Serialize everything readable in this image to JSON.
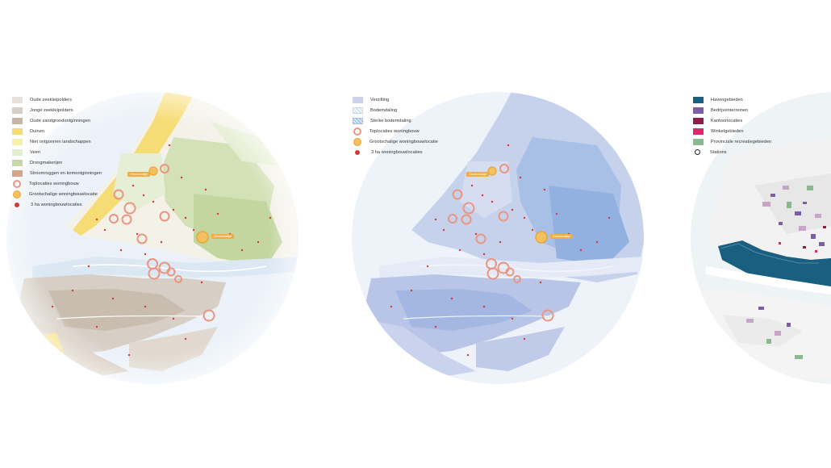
{
  "panels": [
    {
      "id": "landscape",
      "legend": [
        {
          "label": "Oude zeekleipolders",
          "swatch": "fill",
          "color": "#e9e1d9"
        },
        {
          "label": "Jonge zeekleipolders",
          "swatch": "fill",
          "color": "#d7cfc6"
        },
        {
          "label": "Oude zandgrondontginningen",
          "swatch": "fill",
          "color": "#c4b6a7"
        },
        {
          "label": "Duinen",
          "swatch": "fill",
          "color": "#f6dc74"
        },
        {
          "label": "Niet ontgonnen landschappen",
          "swatch": "fill",
          "color": "#f6f2ad"
        },
        {
          "label": "Veen",
          "swatch": "fill",
          "color": "#e3edcf"
        },
        {
          "label": "Droogmakerijen",
          "swatch": "fill",
          "color": "#c6d8a7"
        },
        {
          "label": "Stroomruggen en komontginningen",
          "swatch": "fill",
          "color": "#d7a48c"
        },
        {
          "label": "Toplocaties woningbouw",
          "swatch": "circle-outline"
        },
        {
          "label": "Grootschalige woningbouwlocatie",
          "swatch": "circle-yellow"
        },
        {
          "label": "3 ha woningbouwlocaties",
          "swatch": "dot-red"
        }
      ],
      "site_labels": [
        "Grootschalige",
        "Grootschalige"
      ]
    },
    {
      "id": "soil",
      "legend": [
        {
          "label": "Verzilting",
          "swatch": "fill",
          "color": "#cdd2ec"
        },
        {
          "label": "Bodemdaling",
          "swatch": "hatch-light"
        },
        {
          "label": "Sterke bodemdaling",
          "swatch": "hatch-strong"
        },
        {
          "label": "Toplocaties woningbouw",
          "swatch": "circle-outline"
        },
        {
          "label": "Grootschalige woningbouwlocatie",
          "swatch": "circle-yellow"
        },
        {
          "label": "3 ha woningbouwlocaties",
          "swatch": "dot-red"
        }
      ],
      "site_labels": [
        "Grootschalige",
        "Grootschalige"
      ]
    },
    {
      "id": "economy",
      "legend": [
        {
          "label": "Havengebieden",
          "swatch": "fill",
          "color": "#1a5f7f"
        },
        {
          "label": "Bedrijventerreinen",
          "swatch": "fill",
          "color": "#7b5ea6"
        },
        {
          "label": "Kantoorlocaties",
          "swatch": "fill",
          "color": "#8e1c4e"
        },
        {
          "label": "Winkelgebieden",
          "swatch": "fill",
          "color": "#e0266f"
        },
        {
          "label": "Provinciale recreatiegebieden",
          "swatch": "fill",
          "color": "#8bb98f"
        },
        {
          "label": "Stations",
          "swatch": "station"
        }
      ]
    }
  ]
}
